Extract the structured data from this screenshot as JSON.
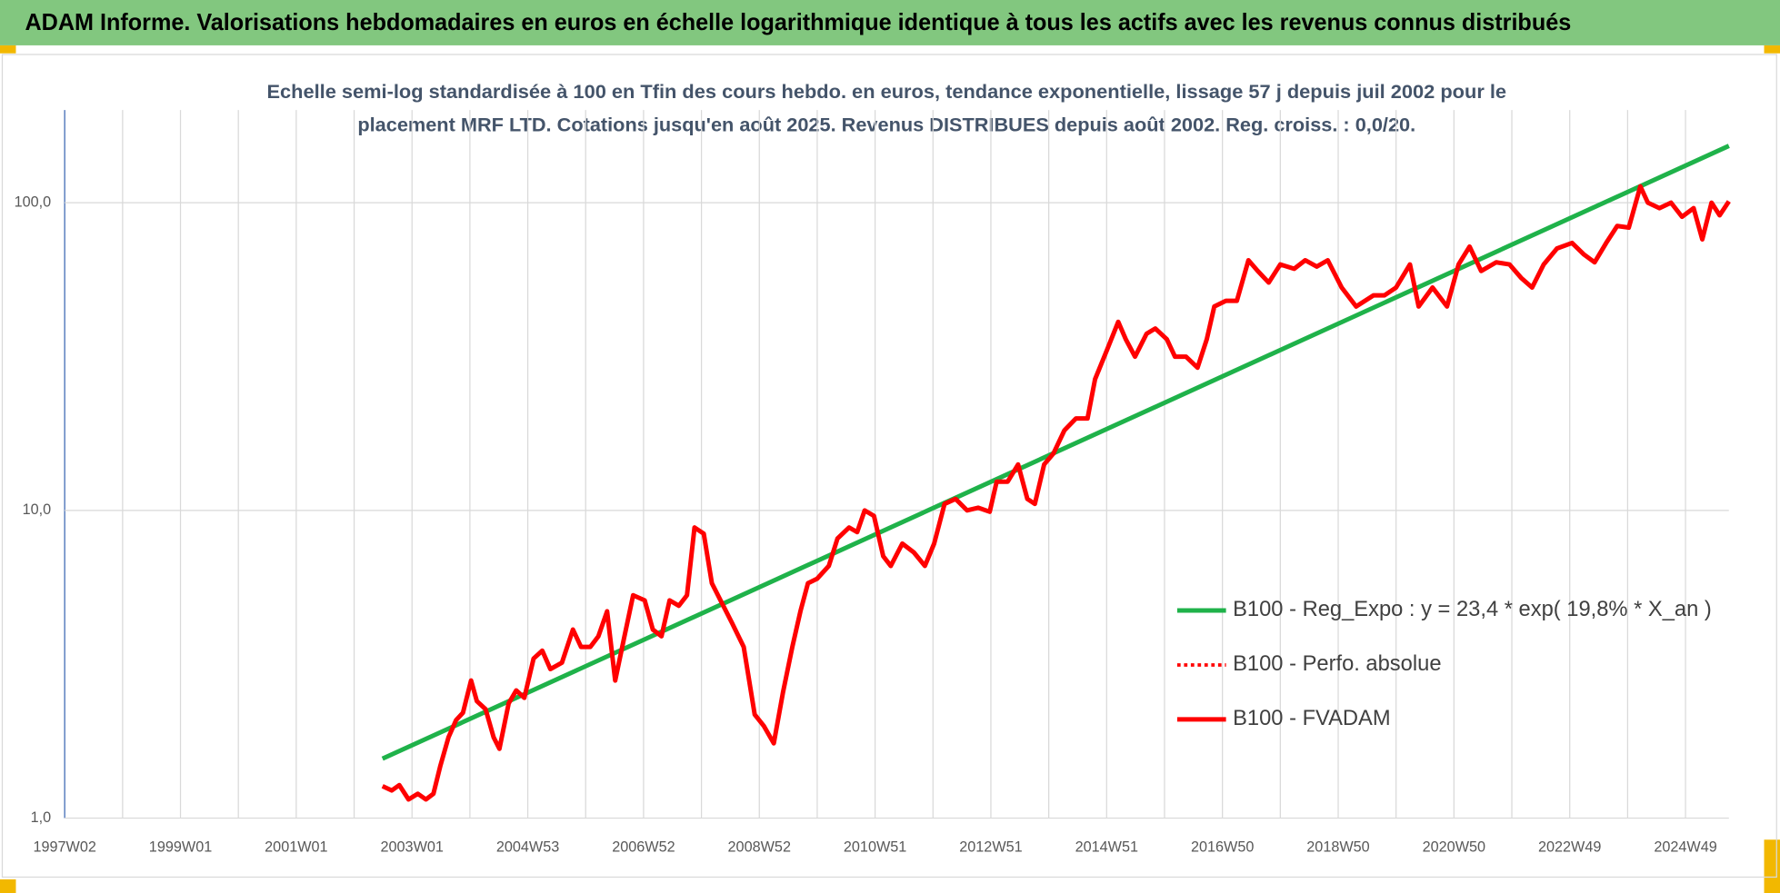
{
  "header": {
    "title": "ADAM Informe. Valorisations hebdomadaires en euros en échelle logarithmique identique à tous les actifs avec les revenus connus distribués"
  },
  "chart_data": {
    "type": "line",
    "title": [
      "Echelle semi-log standardisée à 100 en Tfin des cours hebdo. en euros, tendance exponentielle, lissage 57 j depuis juil 2002 pour le",
      "placement MRF LTD. Cotations jusqu'en août 2025. Revenus DISTRIBUES depuis août 2002. Reg. croiss. : 0,0/20."
    ],
    "log_scale": true,
    "grid": true,
    "legend": "right",
    "ylim": [
      1,
      200
    ],
    "yticks": [
      {
        "value": 1,
        "label": "1,0"
      },
      {
        "value": 10,
        "label": "10,0"
      },
      {
        "value": 100,
        "label": "100,0"
      }
    ],
    "xlim": [
      1997.0,
      2025.75
    ],
    "xticks": [
      {
        "value": 1997,
        "label": "1997W02"
      },
      {
        "value": 1999,
        "label": "1999W01"
      },
      {
        "value": 2001,
        "label": "2001W01"
      },
      {
        "value": 2003,
        "label": "2003W01"
      },
      {
        "value": 2005,
        "label": "2004W53"
      },
      {
        "value": 2007,
        "label": "2006W52"
      },
      {
        "value": 2009,
        "label": "2008W52"
      },
      {
        "value": 2011,
        "label": "2010W51"
      },
      {
        "value": 2013,
        "label": "2012W51"
      },
      {
        "value": 2015,
        "label": "2014W51"
      },
      {
        "value": 2017,
        "label": "2016W50"
      },
      {
        "value": 2019,
        "label": "2018W50"
      },
      {
        "value": 2021,
        "label": "2020W50"
      },
      {
        "value": 2023,
        "label": "2022W49"
      },
      {
        "value": 2025,
        "label": "2024W49"
      }
    ],
    "xminorticks": [
      1998,
      2000,
      2002,
      2004,
      2006,
      2008,
      2010,
      2012,
      2014,
      2016,
      2018,
      2020,
      2022,
      2024
    ],
    "series": [
      {
        "name": "B100 - Reg_Expo : y = 23,4 * exp( 19,8% *  X_an )",
        "color": "#1fb24a",
        "style": "solid",
        "x": [
          2002.49,
          2025.75
        ],
        "values": [
          1.56,
          153
        ]
      },
      {
        "name": "B100 - Perfo. absolue",
        "color": "#ff0000",
        "style": "dotted",
        "x": [],
        "values": []
      },
      {
        "name": "B100 - FVADAM",
        "color": "#ff0000",
        "style": "solid",
        "x": [
          2002.49,
          2002.65,
          2002.78,
          2002.94,
          2003.1,
          2003.24,
          2003.37,
          2003.49,
          2003.63,
          2003.76,
          2003.88,
          2004.02,
          2004.12,
          2004.27,
          2004.41,
          2004.51,
          2004.67,
          2004.8,
          2004.94,
          2005.1,
          2005.25,
          2005.39,
          2005.59,
          2005.78,
          2005.92,
          2006.08,
          2006.22,
          2006.37,
          2006.51,
          2006.67,
          2006.82,
          2007.02,
          2007.16,
          2007.31,
          2007.45,
          2007.61,
          2007.75,
          2007.88,
          2008.04,
          2008.18,
          2008.33,
          2008.53,
          2008.73,
          2008.92,
          2009.08,
          2009.25,
          2009.41,
          2009.57,
          2009.71,
          2009.84,
          2010.0,
          2010.2,
          2010.35,
          2010.55,
          2010.69,
          2010.82,
          2010.98,
          2011.14,
          2011.27,
          2011.47,
          2011.67,
          2011.86,
          2012.02,
          2012.2,
          2012.39,
          2012.59,
          2012.78,
          2012.98,
          2013.1,
          2013.29,
          2013.47,
          2013.63,
          2013.76,
          2013.92,
          2014.08,
          2014.27,
          2014.47,
          2014.67,
          2014.8,
          2015.0,
          2015.2,
          2015.33,
          2015.49,
          2015.69,
          2015.84,
          2016.04,
          2016.18,
          2016.37,
          2016.57,
          2016.73,
          2016.86,
          2017.06,
          2017.25,
          2017.45,
          2017.61,
          2017.8,
          2018.0,
          2018.24,
          2018.43,
          2018.63,
          2018.82,
          2019.06,
          2019.31,
          2019.61,
          2019.8,
          2020.0,
          2020.24,
          2020.39,
          2020.63,
          2020.88,
          2021.08,
          2021.27,
          2021.47,
          2021.73,
          2021.96,
          2022.16,
          2022.35,
          2022.55,
          2022.78,
          2023.04,
          2023.24,
          2023.43,
          2023.63,
          2023.82,
          2024.02,
          2024.22,
          2024.35,
          2024.55,
          2024.75,
          2024.94,
          2025.14,
          2025.29,
          2025.45,
          2025.59,
          2025.75
        ],
        "values": [
          1.27,
          1.23,
          1.28,
          1.15,
          1.2,
          1.15,
          1.2,
          1.48,
          1.83,
          2.08,
          2.2,
          2.8,
          2.4,
          2.26,
          1.83,
          1.68,
          2.36,
          2.6,
          2.46,
          3.3,
          3.5,
          3.05,
          3.2,
          4.1,
          3.6,
          3.6,
          3.9,
          4.7,
          2.8,
          3.9,
          5.3,
          5.1,
          4.1,
          3.9,
          5.1,
          4.9,
          5.3,
          8.8,
          8.4,
          5.8,
          5.1,
          4.3,
          3.6,
          2.17,
          1.99,
          1.75,
          2.57,
          3.6,
          4.7,
          5.8,
          6.0,
          6.6,
          8.1,
          8.8,
          8.5,
          10.0,
          9.6,
          7.1,
          6.6,
          7.8,
          7.3,
          6.6,
          7.8,
          10.5,
          10.9,
          10.0,
          10.2,
          9.9,
          12.4,
          12.4,
          14.1,
          10.9,
          10.5,
          14.1,
          15.3,
          18.2,
          19.9,
          19.9,
          26.7,
          33.0,
          41,
          36,
          31.6,
          37.5,
          39,
          36,
          31.6,
          31.6,
          29.1,
          36,
          46,
          48,
          48,
          65,
          60,
          55,
          63,
          61,
          65,
          62,
          65,
          53,
          46,
          50,
          50,
          53,
          63,
          46,
          53,
          46,
          63,
          72,
          60,
          64,
          63,
          57,
          53,
          63,
          71,
          74,
          68,
          64,
          74,
          84,
          83,
          113,
          100,
          96,
          100,
          90,
          96,
          76,
          100,
          91,
          101
        ]
      }
    ]
  }
}
